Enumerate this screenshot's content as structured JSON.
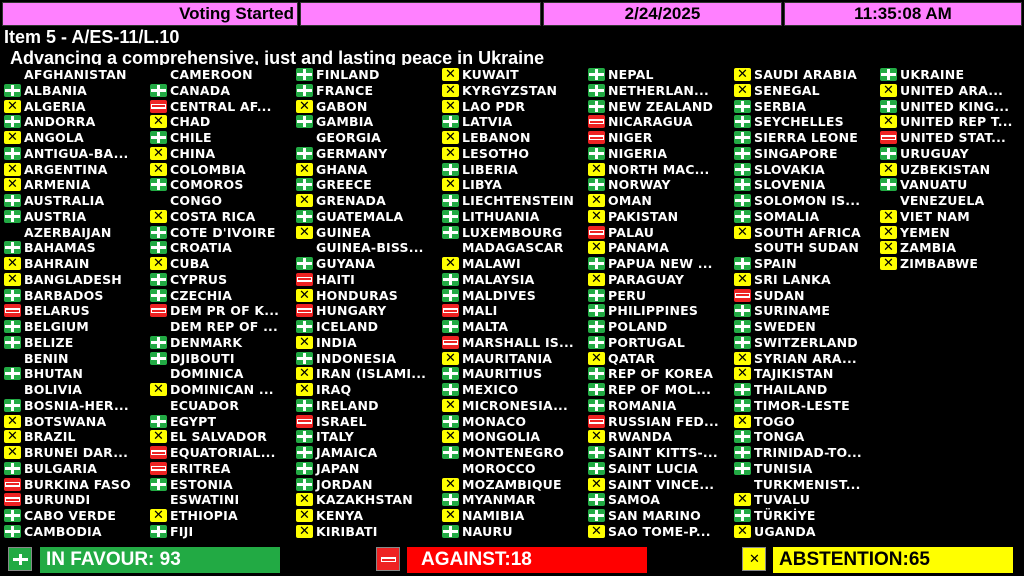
{
  "header": {
    "status": "Voting Started",
    "blank": "",
    "date": "2/24/2025",
    "time": "11:35:08 AM"
  },
  "item": "Item 5 - A/ES-11/L.10",
  "title": "Advancing a comprehensive, just and lasting peace in Ukraine",
  "vote_legend": {
    "Y": "in-favour",
    "N": "against",
    "A": "abstention",
    "": "not-voted"
  },
  "colors": {
    "favour": "#22aa44",
    "against": "#ff0000",
    "abstention": "#ffff00",
    "header": "#ff80ff"
  },
  "columns": [
    [
      [
        "AFGHANISTAN",
        ""
      ],
      [
        "ALBANIA",
        "Y"
      ],
      [
        "ALGERIA",
        "A"
      ],
      [
        "ANDORRA",
        "Y"
      ],
      [
        "ANGOLA",
        "A"
      ],
      [
        "ANTIGUA-BA...",
        "Y"
      ],
      [
        "ARGENTINA",
        "A"
      ],
      [
        "ARMENIA",
        "A"
      ],
      [
        "AUSTRALIA",
        "Y"
      ],
      [
        "AUSTRIA",
        "Y"
      ],
      [
        "AZERBAIJAN",
        ""
      ],
      [
        "BAHAMAS",
        "Y"
      ],
      [
        "BAHRAIN",
        "A"
      ],
      [
        "BANGLADESH",
        "A"
      ],
      [
        "BARBADOS",
        "Y"
      ],
      [
        "BELARUS",
        "N"
      ],
      [
        "BELGIUM",
        "Y"
      ],
      [
        "BELIZE",
        "Y"
      ],
      [
        "BENIN",
        ""
      ],
      [
        "BHUTAN",
        "Y"
      ],
      [
        "BOLIVIA",
        ""
      ],
      [
        "BOSNIA-HER...",
        "Y"
      ],
      [
        "BOTSWANA",
        "A"
      ],
      [
        "BRAZIL",
        "A"
      ],
      [
        "BRUNEI DAR...",
        "A"
      ],
      [
        "BULGARIA",
        "Y"
      ],
      [
        "BURKINA FASO",
        "N"
      ],
      [
        "BURUNDI",
        "N"
      ],
      [
        "CABO VERDE",
        "Y"
      ],
      [
        "CAMBODIA",
        "Y"
      ]
    ],
    [
      [
        "CAMEROON",
        ""
      ],
      [
        "CANADA",
        "Y"
      ],
      [
        "CENTRAL AF...",
        "N"
      ],
      [
        "CHAD",
        "A"
      ],
      [
        "CHILE",
        "Y"
      ],
      [
        "CHINA",
        "A"
      ],
      [
        "COLOMBIA",
        "A"
      ],
      [
        "COMOROS",
        "Y"
      ],
      [
        "CONGO",
        ""
      ],
      [
        "COSTA RICA",
        "A"
      ],
      [
        "COTE D'IVOIRE",
        "Y"
      ],
      [
        "CROATIA",
        "Y"
      ],
      [
        "CUBA",
        "A"
      ],
      [
        "CYPRUS",
        "Y"
      ],
      [
        "CZECHIA",
        "Y"
      ],
      [
        "DEM PR OF K...",
        "N"
      ],
      [
        "DEM REP OF ...",
        ""
      ],
      [
        "DENMARK",
        "Y"
      ],
      [
        "DJIBOUTI",
        "Y"
      ],
      [
        "DOMINICA",
        ""
      ],
      [
        "DOMINICAN ...",
        "A"
      ],
      [
        "ECUADOR",
        ""
      ],
      [
        "EGYPT",
        "Y"
      ],
      [
        "EL SALVADOR",
        "A"
      ],
      [
        "EQUATORIAL...",
        "N"
      ],
      [
        "ERITREA",
        "N"
      ],
      [
        "ESTONIA",
        "Y"
      ],
      [
        "ESWATINI",
        ""
      ],
      [
        "ETHIOPIA",
        "A"
      ],
      [
        "FIJI",
        "Y"
      ]
    ],
    [
      [
        "FINLAND",
        "Y"
      ],
      [
        "FRANCE",
        "Y"
      ],
      [
        "GABON",
        "A"
      ],
      [
        "GAMBIA",
        "Y"
      ],
      [
        "GEORGIA",
        ""
      ],
      [
        "GERMANY",
        "Y"
      ],
      [
        "GHANA",
        "A"
      ],
      [
        "GREECE",
        "Y"
      ],
      [
        "GRENADA",
        "A"
      ],
      [
        "GUATEMALA",
        "Y"
      ],
      [
        "GUINEA",
        "A"
      ],
      [
        "GUINEA-BISS...",
        ""
      ],
      [
        "GUYANA",
        "Y"
      ],
      [
        "HAITI",
        "N"
      ],
      [
        "HONDURAS",
        "A"
      ],
      [
        "HUNGARY",
        "N"
      ],
      [
        "ICELAND",
        "Y"
      ],
      [
        "INDIA",
        "A"
      ],
      [
        "INDONESIA",
        "Y"
      ],
      [
        "IRAN (ISLAMI...",
        "A"
      ],
      [
        "IRAQ",
        "A"
      ],
      [
        "IRELAND",
        "Y"
      ],
      [
        "ISRAEL",
        "N"
      ],
      [
        "ITALY",
        "Y"
      ],
      [
        "JAMAICA",
        "Y"
      ],
      [
        "JAPAN",
        "Y"
      ],
      [
        "JORDAN",
        "Y"
      ],
      [
        "KAZAKHSTAN",
        "A"
      ],
      [
        "KENYA",
        "A"
      ],
      [
        "KIRIBATI",
        "A"
      ]
    ],
    [
      [
        "KUWAIT",
        "A"
      ],
      [
        "KYRGYZSTAN",
        "A"
      ],
      [
        "LAO PDR",
        "A"
      ],
      [
        "LATVIA",
        "Y"
      ],
      [
        "LEBANON",
        "A"
      ],
      [
        "LESOTHO",
        "A"
      ],
      [
        "LIBERIA",
        "Y"
      ],
      [
        "LIBYA",
        "A"
      ],
      [
        "LIECHTENSTEIN",
        "Y"
      ],
      [
        "LITHUANIA",
        "Y"
      ],
      [
        "LUXEMBOURG",
        "Y"
      ],
      [
        "MADAGASCAR",
        ""
      ],
      [
        "MALAWI",
        "A"
      ],
      [
        "MALAYSIA",
        "Y"
      ],
      [
        "MALDIVES",
        "Y"
      ],
      [
        "MALI",
        "N"
      ],
      [
        "MALTA",
        "Y"
      ],
      [
        "MARSHALL IS...",
        "N"
      ],
      [
        "MAURITANIA",
        "A"
      ],
      [
        "MAURITIUS",
        "Y"
      ],
      [
        "MEXICO",
        "Y"
      ],
      [
        "MICRONESIA...",
        "A"
      ],
      [
        "MONACO",
        "Y"
      ],
      [
        "MONGOLIA",
        "A"
      ],
      [
        "MONTENEGRO",
        "Y"
      ],
      [
        "MOROCCO",
        ""
      ],
      [
        "MOZAMBIQUE",
        "A"
      ],
      [
        "MYANMAR",
        "Y"
      ],
      [
        "NAMIBIA",
        "A"
      ],
      [
        "NAURU",
        "Y"
      ]
    ],
    [
      [
        "NEPAL",
        "Y"
      ],
      [
        "NETHERLAN...",
        "Y"
      ],
      [
        "NEW ZEALAND",
        "Y"
      ],
      [
        "NICARAGUA",
        "N"
      ],
      [
        "NIGER",
        "N"
      ],
      [
        "NIGERIA",
        "Y"
      ],
      [
        "NORTH MAC...",
        "A"
      ],
      [
        "NORWAY",
        "Y"
      ],
      [
        "OMAN",
        "A"
      ],
      [
        "PAKISTAN",
        "A"
      ],
      [
        "PALAU",
        "N"
      ],
      [
        "PANAMA",
        "A"
      ],
      [
        "PAPUA NEW ...",
        "Y"
      ],
      [
        "PARAGUAY",
        "A"
      ],
      [
        "PERU",
        "Y"
      ],
      [
        "PHILIPPINES",
        "Y"
      ],
      [
        "POLAND",
        "Y"
      ],
      [
        "PORTUGAL",
        "Y"
      ],
      [
        "QATAR",
        "A"
      ],
      [
        "REP OF KOREA",
        "Y"
      ],
      [
        "REP OF MOL...",
        "Y"
      ],
      [
        "ROMANIA",
        "Y"
      ],
      [
        "RUSSIAN FED...",
        "N"
      ],
      [
        "RWANDA",
        "A"
      ],
      [
        "SAINT KITTS-...",
        "Y"
      ],
      [
        "SAINT LUCIA",
        "Y"
      ],
      [
        "SAINT VINCE...",
        "A"
      ],
      [
        "SAMOA",
        "Y"
      ],
      [
        "SAN MARINO",
        "Y"
      ],
      [
        "SAO TOME-P...",
        "A"
      ]
    ],
    [
      [
        "SAUDI ARABIA",
        "A"
      ],
      [
        "SENEGAL",
        "A"
      ],
      [
        "SERBIA",
        "Y"
      ],
      [
        "SEYCHELLES",
        "Y"
      ],
      [
        "SIERRA LEONE",
        "Y"
      ],
      [
        "SINGAPORE",
        "Y"
      ],
      [
        "SLOVAKIA",
        "Y"
      ],
      [
        "SLOVENIA",
        "Y"
      ],
      [
        "SOLOMON IS...",
        "Y"
      ],
      [
        "SOMALIA",
        "Y"
      ],
      [
        "SOUTH AFRICA",
        "A"
      ],
      [
        "SOUTH SUDAN",
        ""
      ],
      [
        "SPAIN",
        "Y"
      ],
      [
        "SRI LANKA",
        "A"
      ],
      [
        "SUDAN",
        "N"
      ],
      [
        "SURINAME",
        "Y"
      ],
      [
        "SWEDEN",
        "Y"
      ],
      [
        "SWITZERLAND",
        "Y"
      ],
      [
        "SYRIAN ARA...",
        "A"
      ],
      [
        "TAJIKISTAN",
        "A"
      ],
      [
        "THAILAND",
        "Y"
      ],
      [
        "TIMOR-LESTE",
        "Y"
      ],
      [
        "TOGO",
        "A"
      ],
      [
        "TONGA",
        "Y"
      ],
      [
        "TRINIDAD-TO...",
        "Y"
      ],
      [
        "TUNISIA",
        "Y"
      ],
      [
        "TURKMENIST...",
        ""
      ],
      [
        "TUVALU",
        "A"
      ],
      [
        "TÜRKİYE",
        "Y"
      ],
      [
        "UGANDA",
        "A"
      ]
    ],
    [
      [
        "UKRAINE",
        "Y"
      ],
      [
        "UNITED ARA...",
        "A"
      ],
      [
        "UNITED KING...",
        "Y"
      ],
      [
        "UNITED REP T...",
        "A"
      ],
      [
        "UNITED STAT...",
        "N"
      ],
      [
        "URUGUAY",
        "Y"
      ],
      [
        "UZBEKISTAN",
        "A"
      ],
      [
        "VANUATU",
        "Y"
      ],
      [
        "VENEZUELA",
        ""
      ],
      [
        "VIET NAM",
        "A"
      ],
      [
        "YEMEN",
        "A"
      ],
      [
        "ZAMBIA",
        "A"
      ],
      [
        "ZIMBABWE",
        "A"
      ]
    ]
  ],
  "totals": {
    "favour": "IN FAVOUR: 93",
    "against": "AGAINST:18",
    "abstention": "ABSTENTION:65"
  }
}
